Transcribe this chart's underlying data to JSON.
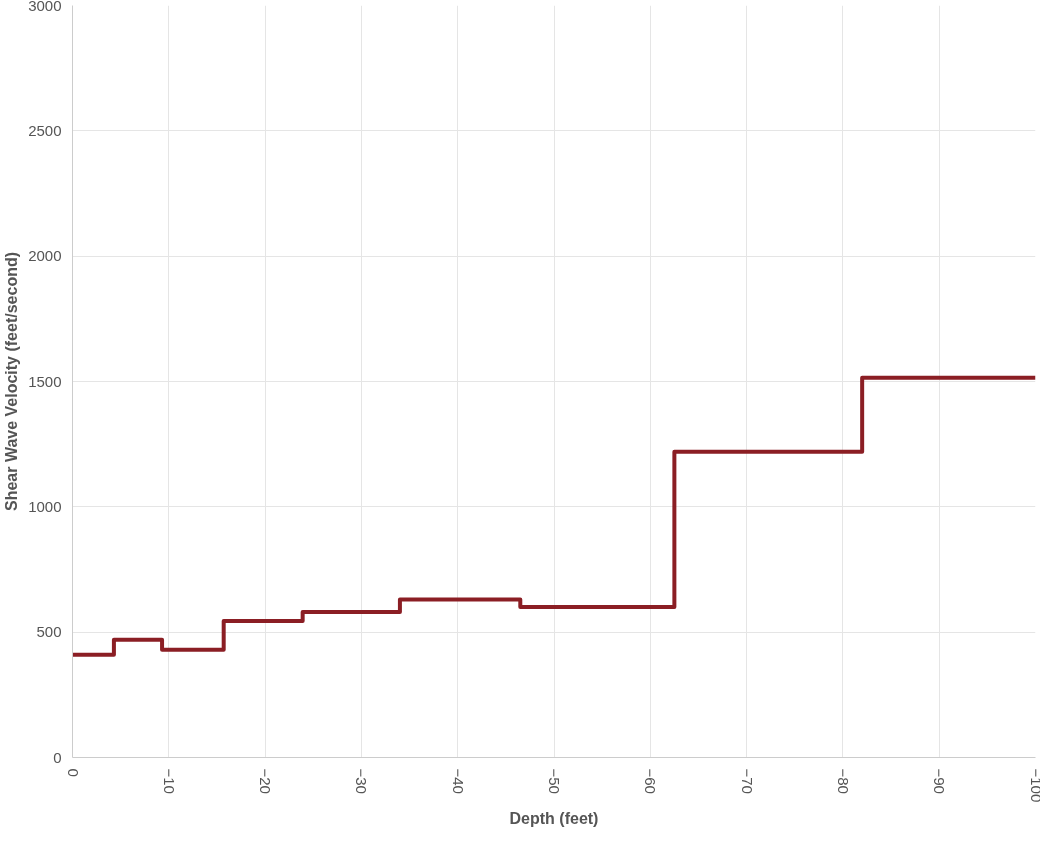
{
  "chart_data": {
    "type": "step",
    "xlabel": "Depth (feet)",
    "ylabel": "Shear Wave Velocity (feet/second)",
    "x": [
      0,
      -4.3,
      -9.3,
      -15.7,
      -23.9,
      -34,
      -46.5,
      -62.5,
      -82,
      -100
    ],
    "series": [
      {
        "color": "#8b1e24",
        "values": [
          410,
          470,
          430,
          545,
          580,
          630,
          600,
          1220,
          1515,
          1515
        ]
      }
    ],
    "xlim": [
      0,
      -100
    ],
    "xticks": [
      0,
      -10,
      -20,
      -30,
      -40,
      -50,
      -60,
      -70,
      -80,
      -90,
      -100
    ],
    "ylim": [
      0,
      3000
    ],
    "yticks": [
      0,
      500,
      1000,
      1500,
      2000,
      2500,
      3000
    ],
    "grid": true,
    "marker": "none",
    "line_style": "solid"
  }
}
